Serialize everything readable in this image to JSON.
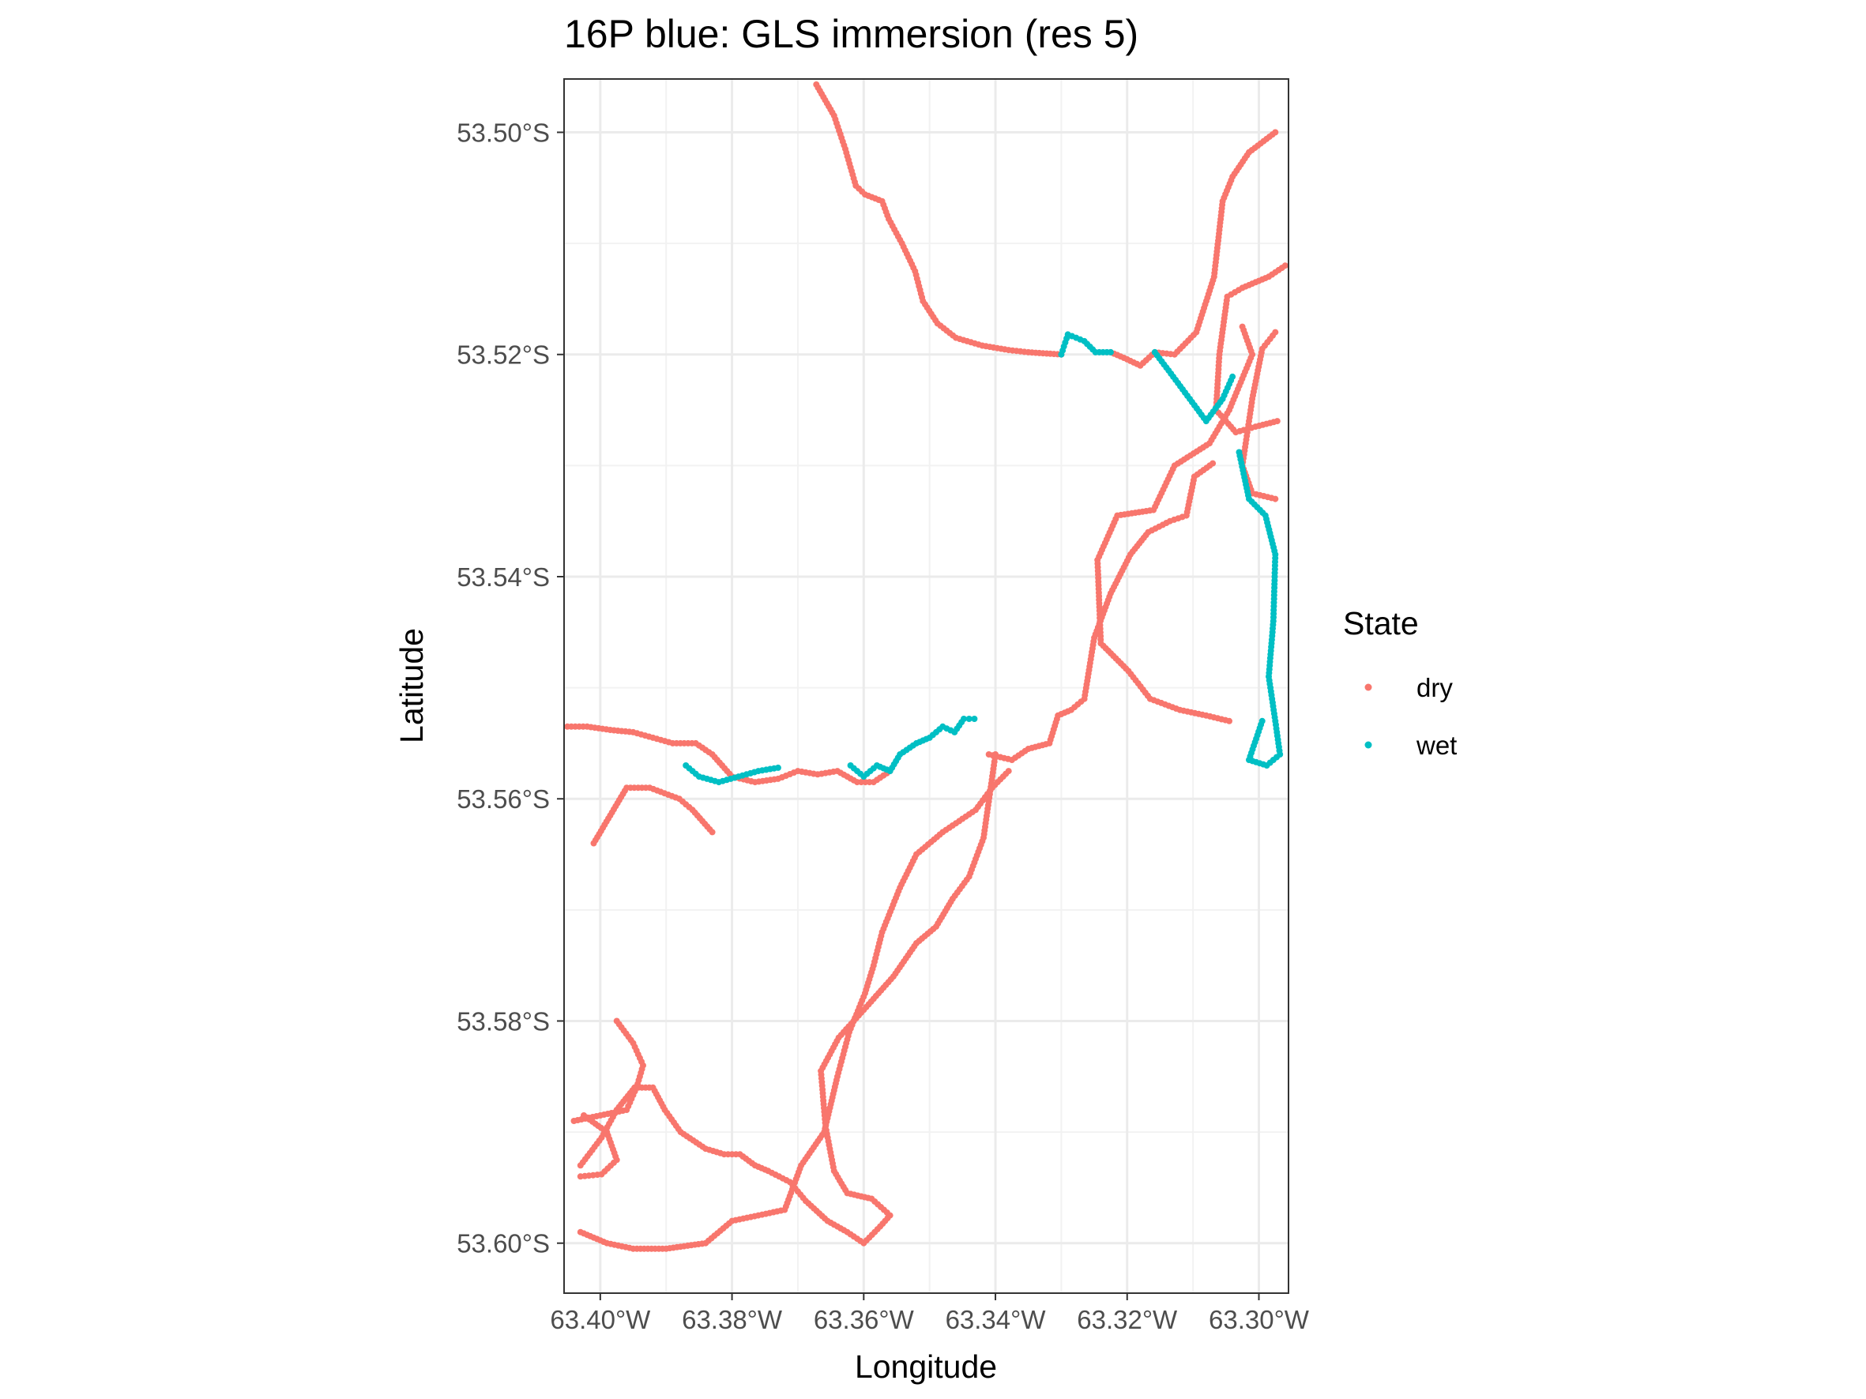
{
  "chart_data": {
    "type": "scatter",
    "title": "16P blue: GLS immersion (res 5)",
    "xlabel": "Longitude",
    "ylabel": "Latitude",
    "xlim": [
      -63.4055,
      -63.2955
    ],
    "ylim": [
      -53.6045,
      -53.4952
    ],
    "x_ticks": [
      {
        "value": -63.4,
        "label": "63.40°W"
      },
      {
        "value": -63.38,
        "label": "63.38°W"
      },
      {
        "value": -63.36,
        "label": "63.36°W"
      },
      {
        "value": -63.34,
        "label": "63.34°W"
      },
      {
        "value": -63.32,
        "label": "63.32°W"
      },
      {
        "value": -63.3,
        "label": "63.30°W"
      }
    ],
    "y_ticks": [
      {
        "value": -53.5,
        "label": "53.50°S"
      },
      {
        "value": -53.52,
        "label": "53.52°S"
      },
      {
        "value": -53.54,
        "label": "53.54°S"
      },
      {
        "value": -53.56,
        "label": "53.56°S"
      },
      {
        "value": -53.58,
        "label": "53.58°S"
      },
      {
        "value": -53.6,
        "label": "53.60°S"
      }
    ],
    "grid": true,
    "legend": {
      "title": "State",
      "position": "right",
      "entries": [
        "dry",
        "wet"
      ]
    },
    "colors": {
      "dry": "#F8766D",
      "wet": "#00BFC4",
      "path": "#000000"
    },
    "series": [
      {
        "name": "dry",
        "segments": [
          [
            [
              -63.3672,
              -53.4957
            ],
            [
              -63.3645,
              -53.4985
            ],
            [
              -63.3628,
              -53.5015
            ],
            [
              -63.3612,
              -53.5048
            ],
            [
              -63.3598,
              -53.5056
            ],
            [
              -63.3572,
              -53.5062
            ],
            [
              -63.3562,
              -53.5078
            ],
            [
              -63.3542,
              -53.51
            ],
            [
              -63.3522,
              -53.5125
            ],
            [
              -63.351,
              -53.5152
            ],
            [
              -63.3488,
              -53.5172
            ],
            [
              -63.346,
              -53.5185
            ],
            [
              -63.342,
              -53.5192
            ],
            [
              -63.338,
              -53.5196
            ],
            [
              -63.335,
              -53.5198
            ],
            [
              -63.33,
              -53.52
            ]
          ],
          [
            [
              -63.3225,
              -53.5198
            ],
            [
              -63.3205,
              -53.5203
            ],
            [
              -63.318,
              -53.521
            ],
            [
              -63.3158,
              -53.5198
            ],
            [
              -63.3128,
              -53.52
            ],
            [
              -63.3095,
              -53.518
            ],
            [
              -63.3068,
              -53.513
            ],
            [
              -63.3055,
              -53.5062
            ],
            [
              -63.304,
              -53.504
            ],
            [
              -63.3015,
              -53.5018
            ],
            [
              -63.2975,
              -53.5
            ]
          ],
          [
            [
              -63.296,
              -53.512
            ],
            [
              -63.2985,
              -53.513
            ],
            [
              -63.3025,
              -53.514
            ],
            [
              -63.3048,
              -53.5148
            ],
            [
              -63.306,
              -53.52
            ],
            [
              -63.3065,
              -53.525
            ],
            [
              -63.3035,
              -53.527
            ],
            [
              -63.3005,
              -53.5265
            ],
            [
              -63.2972,
              -53.526
            ]
          ],
          [
            [
              -63.2975,
              -53.518
            ],
            [
              -63.2995,
              -53.5195
            ],
            [
              -63.301,
              -53.524
            ],
            [
              -63.3025,
              -53.53
            ],
            [
              -63.301,
              -53.5325
            ],
            [
              -63.2975,
              -53.533
            ]
          ],
          [
            [
              -63.307,
              -53.5298
            ],
            [
              -63.3098,
              -53.531
            ],
            [
              -63.311,
              -53.5345
            ],
            [
              -63.3135,
              -53.535
            ],
            [
              -63.3168,
              -53.536
            ],
            [
              -63.3195,
              -53.538
            ],
            [
              -63.3225,
              -53.5415
            ],
            [
              -63.325,
              -53.5455
            ],
            [
              -63.3265,
              -53.551
            ],
            [
              -63.3285,
              -53.552
            ],
            [
              -63.3305,
              -53.5525
            ],
            [
              -63.3318,
              -53.555
            ],
            [
              -63.335,
              -53.5555
            ],
            [
              -63.3375,
              -53.5565
            ],
            [
              -63.341,
              -53.556
            ]
          ],
          [
            [
              -63.3025,
              -53.5175
            ],
            [
              -63.301,
              -53.52
            ],
            [
              -63.3045,
              -53.525
            ],
            [
              -63.3075,
              -53.528
            ],
            [
              -63.3128,
              -53.53
            ],
            [
              -63.316,
              -53.534
            ],
            [
              -63.3215,
              -53.5345
            ],
            [
              -63.3245,
              -53.5385
            ],
            [
              -63.324,
              -53.546
            ],
            [
              -63.3198,
              -53.5485
            ],
            [
              -63.3165,
              -53.551
            ],
            [
              -63.312,
              -53.552
            ],
            [
              -63.308,
              -53.5525
            ],
            [
              -63.3045,
              -53.553
            ]
          ],
          [
            [
              -63.405,
              -53.5535
            ],
            [
              -63.402,
              -53.5535
            ],
            [
              -63.3985,
              -53.5538
            ],
            [
              -63.395,
              -53.554
            ],
            [
              -63.392,
              -53.5545
            ],
            [
              -63.389,
              -53.555
            ],
            [
              -63.3855,
              -53.555
            ],
            [
              -63.383,
              -53.556
            ],
            [
              -63.38,
              -53.558
            ],
            [
              -63.3765,
              -53.5585
            ],
            [
              -63.373,
              -53.5582
            ],
            [
              -63.37,
              -53.5575
            ],
            [
              -63.367,
              -53.5578
            ],
            [
              -63.364,
              -53.5575
            ],
            [
              -63.361,
              -53.5585
            ],
            [
              -63.3585,
              -53.5585
            ],
            [
              -63.356,
              -53.5575
            ]
          ],
          [
            [
              -63.401,
              -53.564
            ],
            [
              -63.3985,
              -53.5615
            ],
            [
              -63.396,
              -53.559
            ],
            [
              -63.3925,
              -53.559
            ],
            [
              -63.388,
              -53.56
            ],
            [
              -63.386,
              -53.561
            ],
            [
              -63.383,
              -53.563
            ]
          ],
          [
            [
              -63.403,
              -53.593
            ],
            [
              -63.3998,
              -53.5905
            ],
            [
              -63.3975,
              -53.588
            ],
            [
              -63.3948,
              -53.586
            ],
            [
              -63.392,
              -53.586
            ],
            [
              -63.3902,
              -53.588
            ],
            [
              -63.3878,
              -53.59
            ],
            [
              -63.384,
              -53.5915
            ],
            [
              -63.3812,
              -53.592
            ],
            [
              -63.3788,
              -53.592
            ],
            [
              -63.3765,
              -53.593
            ],
            [
              -63.3745,
              -53.5935
            ],
            [
              -63.3712,
              -53.5945
            ],
            [
              -63.3688,
              -53.5962
            ],
            [
              -63.3655,
              -53.598
            ],
            [
              -63.3625,
              -53.599
            ],
            [
              -63.36,
              -53.6
            ],
            [
              -63.3575,
              -53.5985
            ],
            [
              -63.356,
              -53.5975
            ],
            [
              -63.3588,
              -53.596
            ],
            [
              -63.3625,
              -53.5955
            ],
            [
              -63.3645,
              -53.5935
            ],
            [
              -63.3658,
              -53.5895
            ],
            [
              -63.3665,
              -53.5845
            ],
            [
              -63.3638,
              -53.5815
            ],
            [
              -63.36,
              -53.579
            ],
            [
              -63.3555,
              -53.576
            ],
            [
              -63.352,
              -53.573
            ],
            [
              -63.349,
              -53.5715
            ],
            [
              -63.3465,
              -53.569
            ],
            [
              -63.344,
              -53.567
            ],
            [
              -63.3418,
              -53.5635
            ],
            [
              -63.34,
              -53.556
            ]
          ],
          [
            [
              -63.3975,
              -53.58
            ],
            [
              -63.395,
              -53.582
            ],
            [
              -63.3935,
              -53.584
            ],
            [
              -63.3945,
              -53.586
            ],
            [
              -63.396,
              -53.588
            ],
            [
              -63.4,
              -53.5885
            ],
            [
              -63.404,
              -53.589
            ]
          ],
          [
            [
              -63.403,
              -53.599
            ],
            [
              -63.399,
              -53.6
            ],
            [
              -63.395,
              -53.6005
            ],
            [
              -63.39,
              -53.6005
            ],
            [
              -63.384,
              -53.6
            ],
            [
              -63.38,
              -53.598
            ],
            [
              -63.376,
              -53.5975
            ],
            [
              -63.372,
              -53.597
            ],
            [
              -63.3695,
              -53.593
            ],
            [
              -63.366,
              -53.59
            ],
            [
              -63.364,
              -53.585
            ],
            [
              -63.3622,
              -53.581
            ],
            [
              -63.3598,
              -53.5775
            ],
            [
              -63.3585,
              -53.575
            ],
            [
              -63.3572,
              -53.572
            ],
            [
              -63.3545,
              -53.568
            ],
            [
              -63.352,
              -53.565
            ],
            [
              -63.348,
              -53.563
            ],
            [
              -63.3455,
              -53.562
            ],
            [
              -63.343,
              -53.561
            ],
            [
              -63.3405,
              -53.559
            ],
            [
              -63.338,
              -53.5575
            ]
          ],
          [
            [
              -63.403,
              -53.594
            ],
            [
              -63.3998,
              -53.5938
            ],
            [
              -63.3975,
              -53.5925
            ],
            [
              -63.399,
              -53.59
            ],
            [
              -63.4025,
              -53.5885
            ]
          ]
        ]
      },
      {
        "name": "wet",
        "segments": [
          [
            [
              -63.33,
              -53.52
            ],
            [
              -63.329,
              -53.5182
            ],
            [
              -63.3265,
              -53.5188
            ],
            [
              -63.3248,
              -53.5198
            ],
            [
              -63.3225,
              -53.5198
            ]
          ],
          [
            [
              -63.3158,
              -53.5198
            ],
            [
              -63.313,
              -53.522
            ],
            [
              -63.3105,
              -53.524
            ],
            [
              -63.308,
              -53.526
            ],
            [
              -63.3055,
              -53.524
            ],
            [
              -63.304,
              -53.522
            ]
          ],
          [
            [
              -63.303,
              -53.5288
            ],
            [
              -63.3015,
              -53.533
            ],
            [
              -63.299,
              -53.5345
            ],
            [
              -63.2975,
              -53.538
            ],
            [
              -63.2978,
              -53.544
            ],
            [
              -63.2985,
              -53.549
            ],
            [
              -63.2975,
              -53.553
            ],
            [
              -63.2968,
              -53.556
            ],
            [
              -63.2988,
              -53.557
            ],
            [
              -63.3015,
              -53.5565
            ],
            [
              -63.2995,
              -53.553
            ]
          ],
          [
            [
              -63.387,
              -53.557
            ],
            [
              -63.385,
              -53.558
            ],
            [
              -63.382,
              -53.5585
            ],
            [
              -63.379,
              -53.558
            ],
            [
              -63.376,
              -53.5575
            ],
            [
              -63.373,
              -53.5572
            ]
          ],
          [
            [
              -63.362,
              -53.557
            ],
            [
              -63.36,
              -53.558
            ],
            [
              -63.358,
              -53.557
            ],
            [
              -63.356,
              -53.5575
            ],
            [
              -63.3545,
              -53.556
            ],
            [
              -63.352,
              -53.555
            ],
            [
              -63.35,
              -53.5545
            ],
            [
              -63.348,
              -53.5535
            ],
            [
              -63.3462,
              -53.554
            ],
            [
              -63.3448,
              -53.5528
            ],
            [
              -63.3432,
              -53.5528
            ]
          ]
        ]
      }
    ]
  }
}
